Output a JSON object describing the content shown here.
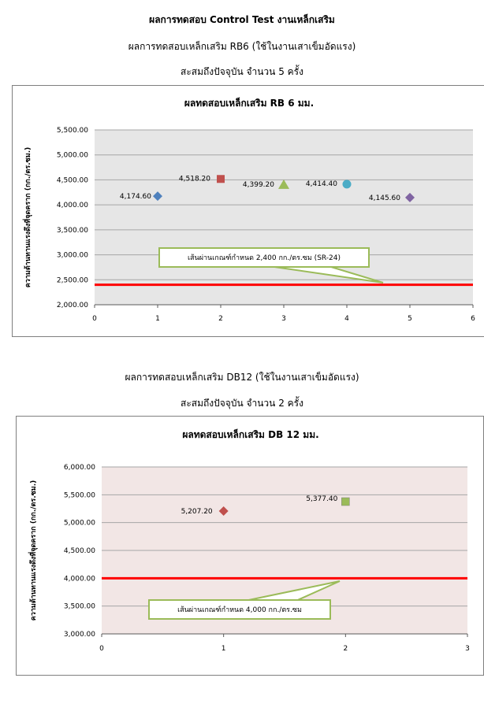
{
  "document": {
    "heading_line1": "ผลการทดสอบ Control Test งานเหล็กเสริม",
    "section1": {
      "subtitle": "ผลการทดสอบเหล็กเสริม RB6 (ใช้ในงานเสาเข็มอัดแรง)",
      "count_text": "สะสมถึงปัจจุบัน จำนวน 5 ครั้ง"
    },
    "section2": {
      "subtitle": "ผลการทดสอบเหล็กเสริม DB12 (ใช้ในงานเสาเข็มอัดแรง)",
      "count_text": "สะสมถึงปัจจุบัน จำนวน 2 ครั้ง"
    }
  },
  "chart_data": [
    {
      "type": "scatter",
      "title": "ผลทดสอบเหล็กเสริม RB 6 มม.",
      "xlabel": "",
      "ylabel": "ความต้านทานแรงดึงที่จุดคราก (กก./ตร.ซม.)",
      "xlim": [
        0,
        6
      ],
      "ylim": [
        2000,
        5500
      ],
      "x_ticks": [
        "0",
        "1",
        "2",
        "3",
        "4",
        "5",
        "6"
      ],
      "y_ticks": [
        "2,000.00",
        "2,500.00",
        "3,000.00",
        "3,500.00",
        "4,000.00",
        "4,500.00",
        "5,000.00",
        "5,500.00"
      ],
      "grid": true,
      "plot_background": "#e6e6e6",
      "points": [
        {
          "x": 1,
          "y": 4174.6,
          "label": "4,174.60",
          "marker": "diamond",
          "color": "#4f81bd"
        },
        {
          "x": 2,
          "y": 4518.2,
          "label": "4,518.20",
          "marker": "square",
          "color": "#c0504d"
        },
        {
          "x": 3,
          "y": 4399.2,
          "label": "4,399.20",
          "marker": "triangle",
          "color": "#9bbb59"
        },
        {
          "x": 4,
          "y": 4414.4,
          "label": "4,414.40",
          "marker": "circle",
          "color": "#4bacc6"
        },
        {
          "x": 5,
          "y": 4145.6,
          "label": "4,145.60",
          "marker": "diamond",
          "color": "#8064a2"
        }
      ],
      "threshold": {
        "y": 2400,
        "color": "#ff0000"
      },
      "callout": {
        "text": "เส้นผ่านเกณฑ์กำหนด 2,400 กก./ตร.ซม (SR-24)",
        "border_color": "#9bbb59"
      }
    },
    {
      "type": "scatter",
      "title": "ผลทดสอบเหล็กเสริม DB 12 มม.",
      "xlabel": "",
      "ylabel": "ความต้านทานแรงดึงที่จุดคราก (กก./ตร.ซม.)",
      "xlim": [
        0,
        3
      ],
      "ylim": [
        3000,
        6000
      ],
      "x_ticks": [
        "0",
        "1",
        "2",
        "3"
      ],
      "y_ticks": [
        "3,000.00",
        "3,500.00",
        "4,000.00",
        "4,500.00",
        "5,000.00",
        "5,500.00",
        "6,000.00"
      ],
      "grid": true,
      "plot_background": "#f2e6e5",
      "points": [
        {
          "x": 1,
          "y": 5207.2,
          "label": "5,207.20",
          "marker": "diamond",
          "color": "#c0504d"
        },
        {
          "x": 2,
          "y": 5377.4,
          "label": "5,377.40",
          "marker": "square",
          "color": "#9bbb59"
        }
      ],
      "threshold": {
        "y": 4000,
        "color": "#ff0000"
      },
      "callout": {
        "text": "เส้นผ่านเกณฑ์กำหนด 4,000 กก./ตร.ซม",
        "border_color": "#9bbb59"
      }
    }
  ]
}
